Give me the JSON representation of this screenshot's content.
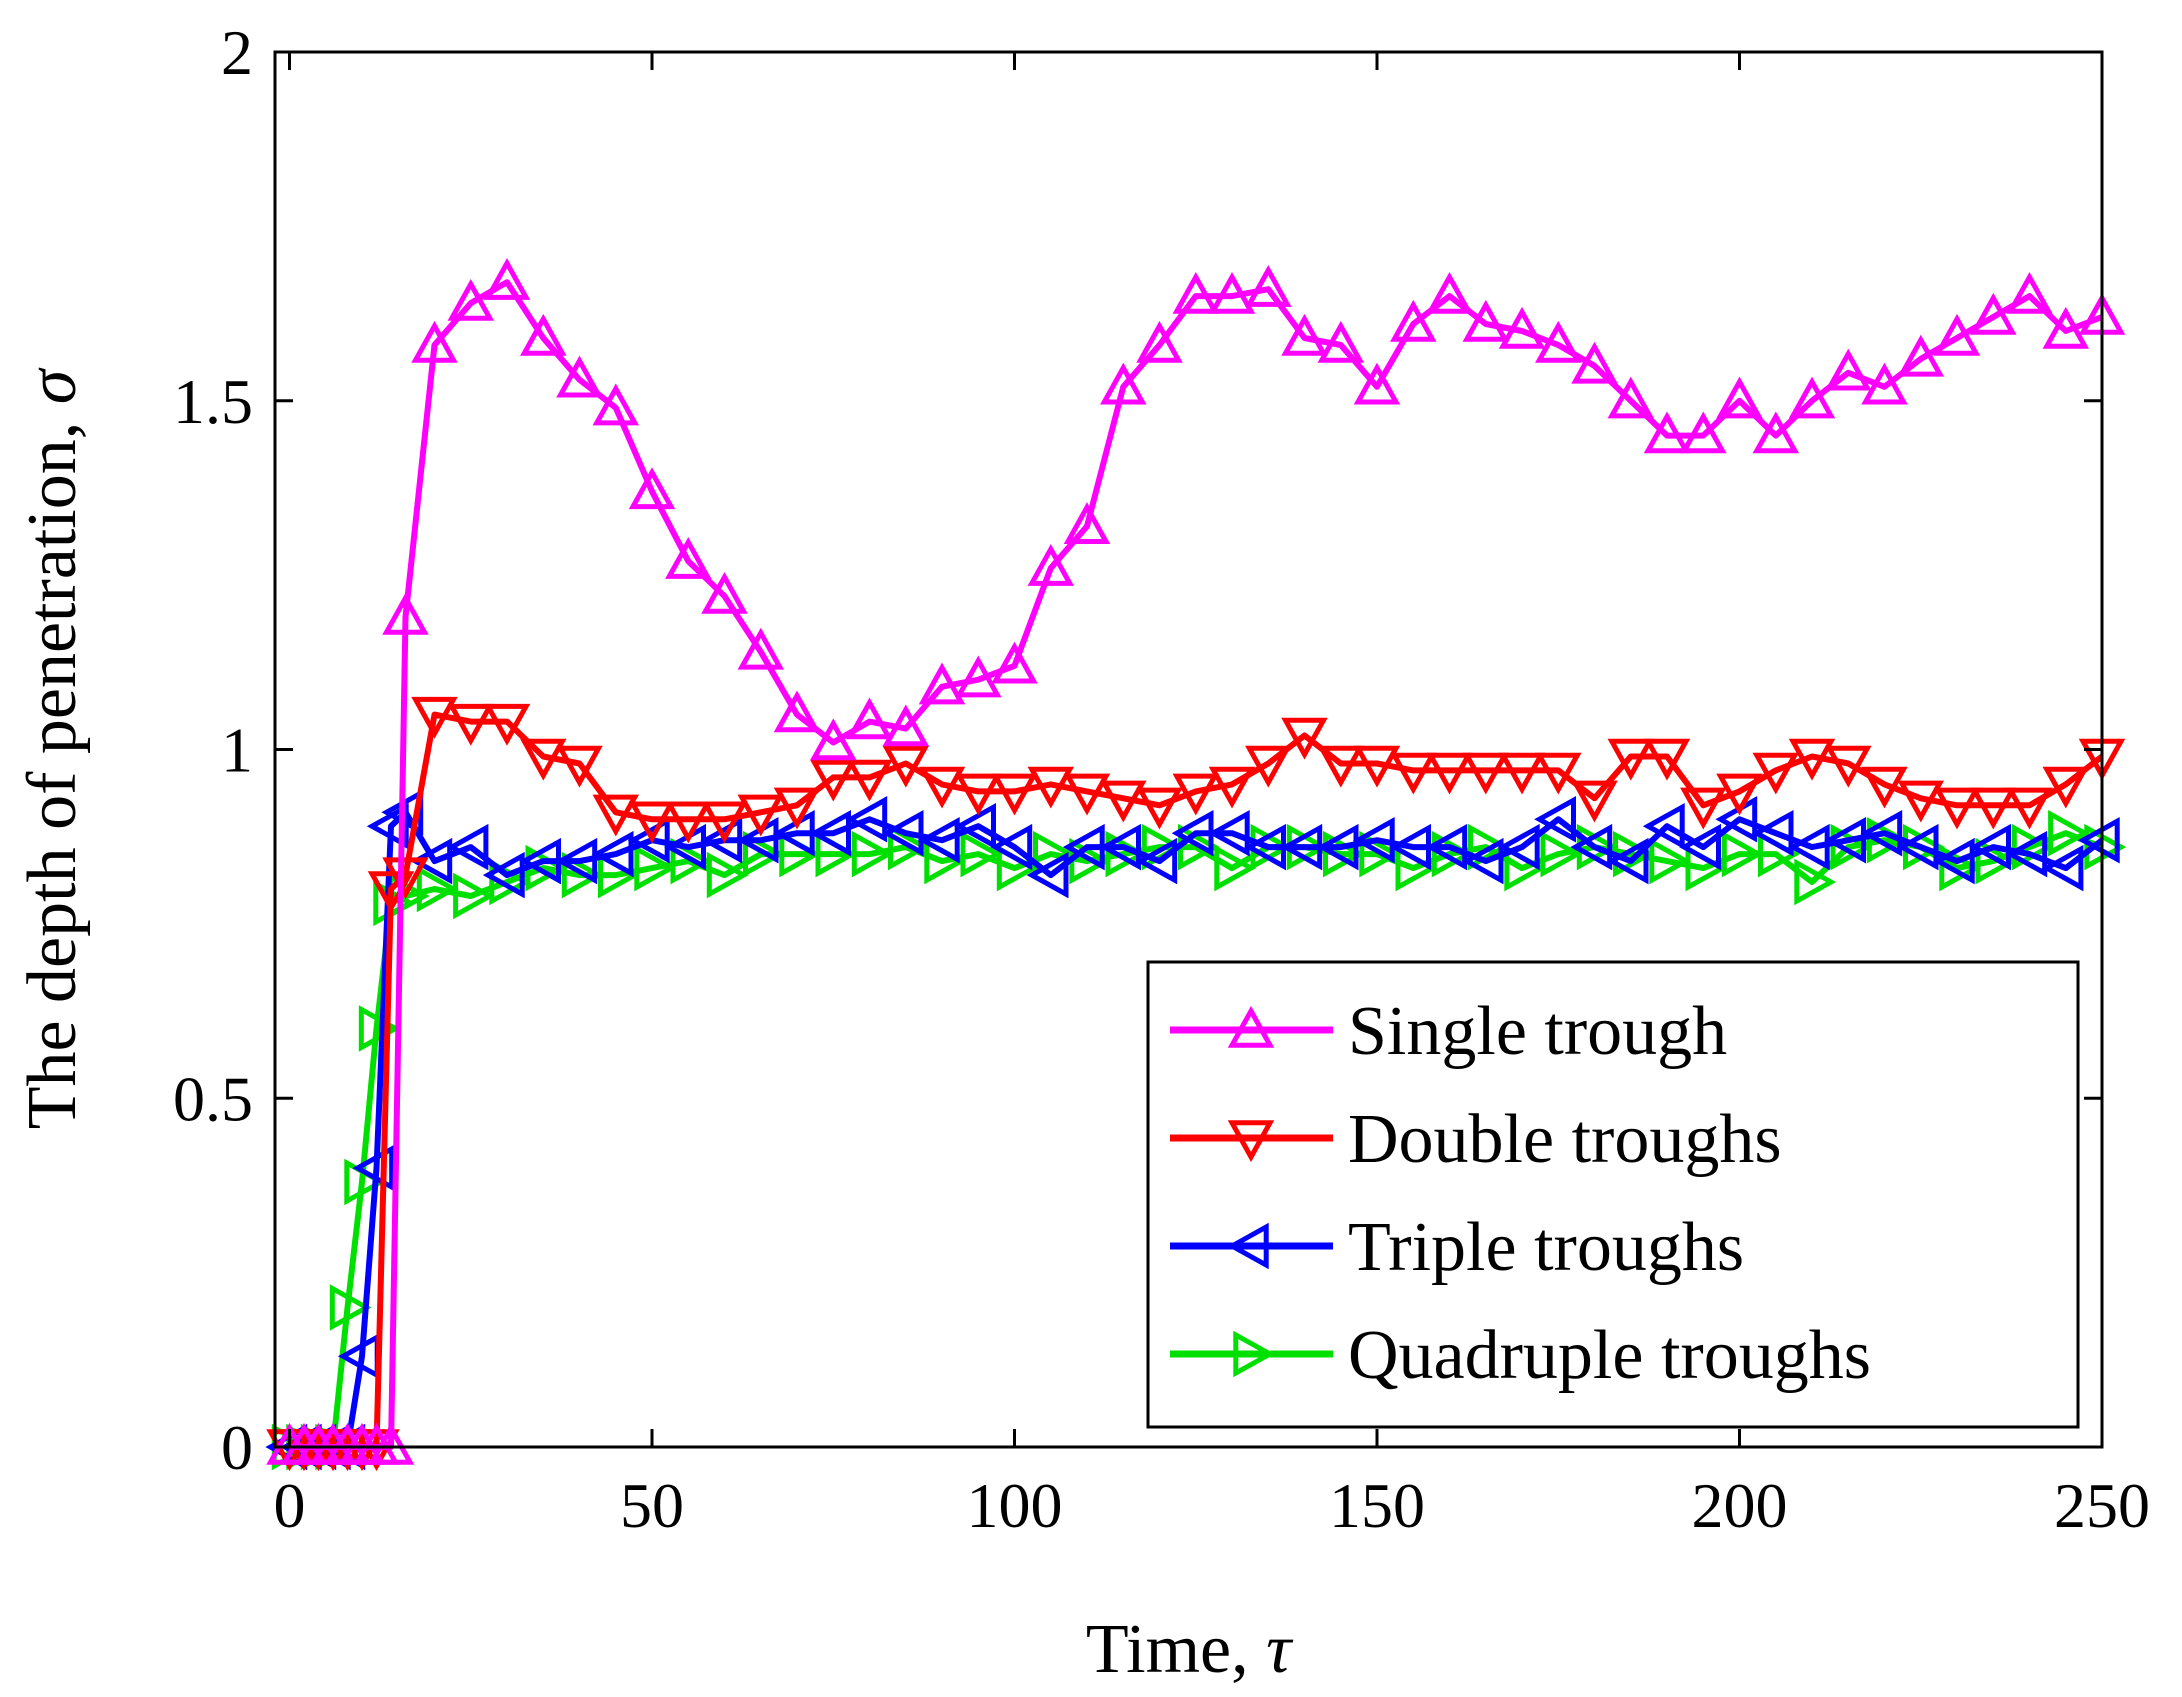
{
  "chart_data": {
    "type": "line",
    "title": "",
    "xlabel": "Time, ",
    "xlabel_symbol": "τ",
    "ylabel": "The depth of penetration, ",
    "ylabel_symbol": "σ",
    "xlim": [
      -2,
      250
    ],
    "ylim": [
      0,
      2
    ],
    "xticks": [
      0,
      50,
      100,
      150,
      200,
      250
    ],
    "yticks": [
      0,
      0.5,
      1,
      1.5,
      2
    ],
    "xtick_labels": [
      "0",
      "50",
      "100",
      "150",
      "200",
      "250"
    ],
    "ytick_labels": [
      "0",
      "0.5",
      "1",
      "1.5",
      "2"
    ],
    "grid": false,
    "legend_position": "lower-right",
    "series": [
      {
        "name": "Single trough",
        "color": "#ff00ff",
        "marker": "triangle-up",
        "x": [
          0,
          2,
          4,
          6,
          8,
          10,
          12,
          14,
          16,
          20,
          25,
          30,
          35,
          40,
          45,
          50,
          55,
          60,
          65,
          70,
          75,
          80,
          85,
          90,
          95,
          100,
          105,
          110,
          115,
          120,
          125,
          130,
          135,
          140,
          145,
          150,
          155,
          160,
          165,
          170,
          175,
          180,
          185,
          190,
          195,
          200,
          205,
          210,
          215,
          220,
          225,
          230,
          235,
          240,
          245,
          250
        ],
        "y": [
          0,
          0,
          0,
          0,
          0,
          0,
          0,
          0,
          1.19,
          1.58,
          1.64,
          1.67,
          1.59,
          1.53,
          1.49,
          1.37,
          1.27,
          1.22,
          1.14,
          1.05,
          1.01,
          1.04,
          1.03,
          1.09,
          1.1,
          1.12,
          1.26,
          1.32,
          1.52,
          1.58,
          1.65,
          1.65,
          1.66,
          1.59,
          1.58,
          1.52,
          1.61,
          1.65,
          1.61,
          1.6,
          1.58,
          1.55,
          1.5,
          1.45,
          1.45,
          1.5,
          1.45,
          1.5,
          1.54,
          1.52,
          1.56,
          1.59,
          1.62,
          1.65,
          1.6,
          1.62
        ]
      },
      {
        "name": "Double troughs",
        "color": "#ff0000",
        "marker": "triangle-down",
        "x": [
          0,
          2,
          4,
          6,
          8,
          10,
          12,
          14,
          16,
          20,
          25,
          30,
          35,
          40,
          45,
          50,
          55,
          60,
          65,
          70,
          75,
          80,
          85,
          90,
          95,
          100,
          105,
          110,
          115,
          120,
          125,
          130,
          135,
          140,
          145,
          150,
          155,
          160,
          165,
          170,
          175,
          180,
          185,
          190,
          195,
          200,
          205,
          210,
          215,
          220,
          225,
          230,
          235,
          240,
          245,
          250
        ],
        "y": [
          0,
          0,
          0,
          0,
          0,
          0,
          0,
          0.8,
          0.82,
          1.05,
          1.04,
          1.04,
          0.99,
          0.98,
          0.91,
          0.9,
          0.9,
          0.9,
          0.91,
          0.92,
          0.96,
          0.96,
          0.98,
          0.95,
          0.94,
          0.94,
          0.95,
          0.94,
          0.93,
          0.92,
          0.94,
          0.95,
          0.98,
          1.02,
          0.98,
          0.98,
          0.97,
          0.97,
          0.97,
          0.97,
          0.97,
          0.93,
          0.99,
          0.99,
          0.92,
          0.94,
          0.97,
          0.99,
          0.98,
          0.95,
          0.93,
          0.92,
          0.92,
          0.92,
          0.95,
          0.99
        ]
      },
      {
        "name": "Triple troughs",
        "color": "#0000ff",
        "marker": "triangle-left",
        "x": [
          0,
          2,
          4,
          6,
          8,
          10,
          12,
          14,
          16,
          20,
          25,
          30,
          35,
          40,
          45,
          50,
          55,
          60,
          65,
          70,
          75,
          80,
          85,
          90,
          95,
          100,
          105,
          110,
          115,
          120,
          125,
          130,
          135,
          140,
          145,
          150,
          155,
          160,
          165,
          170,
          175,
          180,
          185,
          190,
          195,
          200,
          205,
          210,
          215,
          220,
          225,
          230,
          235,
          240,
          245,
          250
        ],
        "y": [
          0,
          0,
          0,
          0,
          0,
          0.13,
          0.4,
          0.89,
          0.91,
          0.84,
          0.86,
          0.82,
          0.84,
          0.84,
          0.85,
          0.87,
          0.86,
          0.87,
          0.87,
          0.88,
          0.88,
          0.9,
          0.88,
          0.87,
          0.89,
          0.86,
          0.82,
          0.86,
          0.86,
          0.84,
          0.88,
          0.88,
          0.86,
          0.86,
          0.86,
          0.87,
          0.86,
          0.86,
          0.84,
          0.86,
          0.9,
          0.86,
          0.84,
          0.89,
          0.86,
          0.9,
          0.88,
          0.86,
          0.87,
          0.88,
          0.86,
          0.84,
          0.86,
          0.85,
          0.83,
          0.87
        ]
      },
      {
        "name": "Quadruple troughs",
        "color": "#00e000",
        "marker": "triangle-right",
        "x": [
          0,
          2,
          4,
          6,
          8,
          10,
          12,
          14,
          16,
          20,
          25,
          30,
          35,
          40,
          45,
          50,
          55,
          60,
          65,
          70,
          75,
          80,
          85,
          90,
          95,
          100,
          105,
          110,
          115,
          120,
          125,
          130,
          135,
          140,
          145,
          150,
          155,
          160,
          165,
          170,
          175,
          180,
          185,
          190,
          195,
          200,
          205,
          210,
          215,
          220,
          225,
          230,
          235,
          240,
          245,
          250
        ],
        "y": [
          0,
          0,
          0,
          0,
          0.2,
          0.38,
          0.6,
          0.78,
          0.79,
          0.8,
          0.79,
          0.81,
          0.83,
          0.82,
          0.82,
          0.83,
          0.84,
          0.82,
          0.85,
          0.85,
          0.85,
          0.85,
          0.86,
          0.84,
          0.85,
          0.83,
          0.85,
          0.84,
          0.85,
          0.86,
          0.86,
          0.83,
          0.86,
          0.86,
          0.85,
          0.85,
          0.83,
          0.85,
          0.86,
          0.83,
          0.85,
          0.86,
          0.85,
          0.84,
          0.83,
          0.85,
          0.85,
          0.81,
          0.86,
          0.87,
          0.86,
          0.83,
          0.84,
          0.86,
          0.88,
          0.86
        ]
      }
    ]
  }
}
